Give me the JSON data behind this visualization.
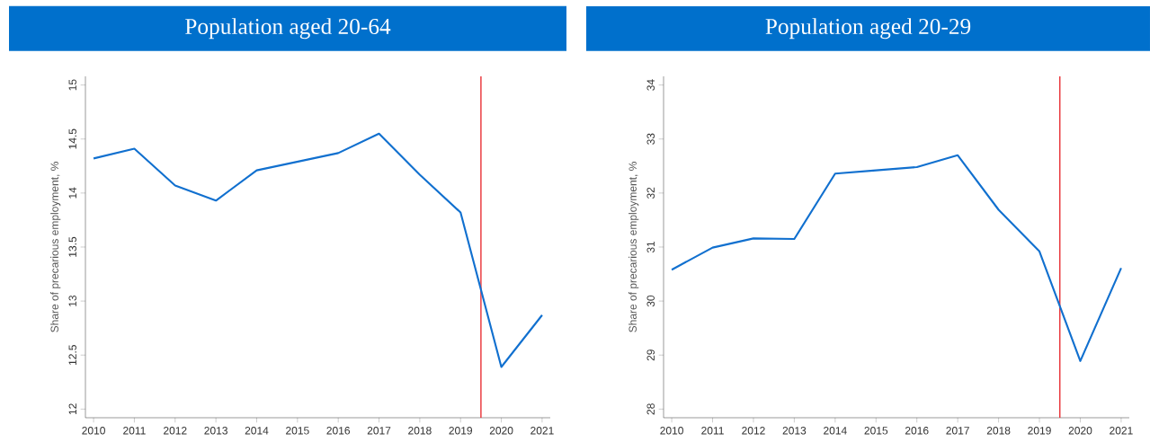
{
  "chart_data": [
    {
      "type": "line",
      "title": "Population aged 20-64",
      "ylabel": "Share of precarious employment, %",
      "color": "#1170cf",
      "x": [
        2010,
        2011,
        2012,
        2013,
        2014,
        2015,
        2016,
        2017,
        2018,
        2019,
        2020,
        2021
      ],
      "values": [
        14.32,
        14.41,
        14.07,
        13.93,
        14.21,
        14.29,
        14.37,
        14.55,
        14.17,
        13.82,
        12.39,
        12.87
      ],
      "xlim": [
        2009.8,
        2021.2
      ],
      "ylim": [
        11.92,
        15.08
      ],
      "xticks": [
        2010,
        2011,
        2012,
        2013,
        2014,
        2015,
        2016,
        2017,
        2018,
        2019,
        2020,
        2021
      ],
      "yticks": [
        12,
        12.5,
        13,
        13.5,
        14,
        14.5,
        15
      ],
      "ref_lines": [
        {
          "axis": "x",
          "value": 2019.5,
          "color": "#e8262b"
        }
      ]
    },
    {
      "type": "line",
      "title": "Population aged 20-29",
      "ylabel": "Share of precarious employment, %",
      "color": "#1170cf",
      "x": [
        2010,
        2011,
        2012,
        2013,
        2014,
        2015,
        2016,
        2017,
        2018,
        2019,
        2020,
        2021
      ],
      "values": [
        30.58,
        30.99,
        31.16,
        31.15,
        32.36,
        32.42,
        32.48,
        32.7,
        31.69,
        30.92,
        28.89,
        30.61
      ],
      "xlim": [
        2009.8,
        2021.2
      ],
      "ylim": [
        27.84,
        34.16
      ],
      "xticks": [
        2010,
        2011,
        2012,
        2013,
        2014,
        2015,
        2016,
        2017,
        2018,
        2019,
        2020,
        2021
      ],
      "yticks": [
        28,
        29,
        30,
        31,
        32,
        33,
        34
      ],
      "ref_lines": [
        {
          "axis": "x",
          "value": 2019.5,
          "color": "#e8262b"
        }
      ]
    }
  ]
}
